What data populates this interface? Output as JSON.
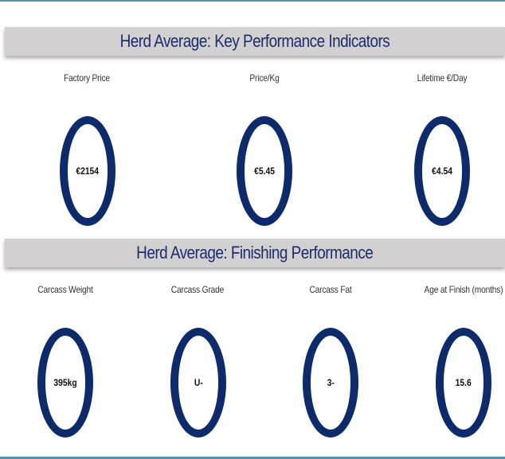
{
  "kpi": {
    "title": "Herd Average: Key Performance Indicators",
    "cards": [
      {
        "label": "Factory Price",
        "value": "€2154"
      },
      {
        "label": "Price/Kg",
        "value": "€5.45"
      },
      {
        "label": "Lifetime €/Day",
        "value": "€4.54"
      }
    ]
  },
  "finishing": {
    "title": "Herd Average: Finishing Performance",
    "cards": [
      {
        "label": "Carcass Weight",
        "value": "395kg"
      },
      {
        "label": "Carcass Grade",
        "value": "U-"
      },
      {
        "label": "Carcass Fat",
        "value": "3-"
      },
      {
        "label": "Age at Finish (months)",
        "value": "15.6"
      }
    ]
  },
  "colors": {
    "ring": "#0d2a6b",
    "title": "#1c2c6c",
    "banner": "#d2d0d0"
  }
}
